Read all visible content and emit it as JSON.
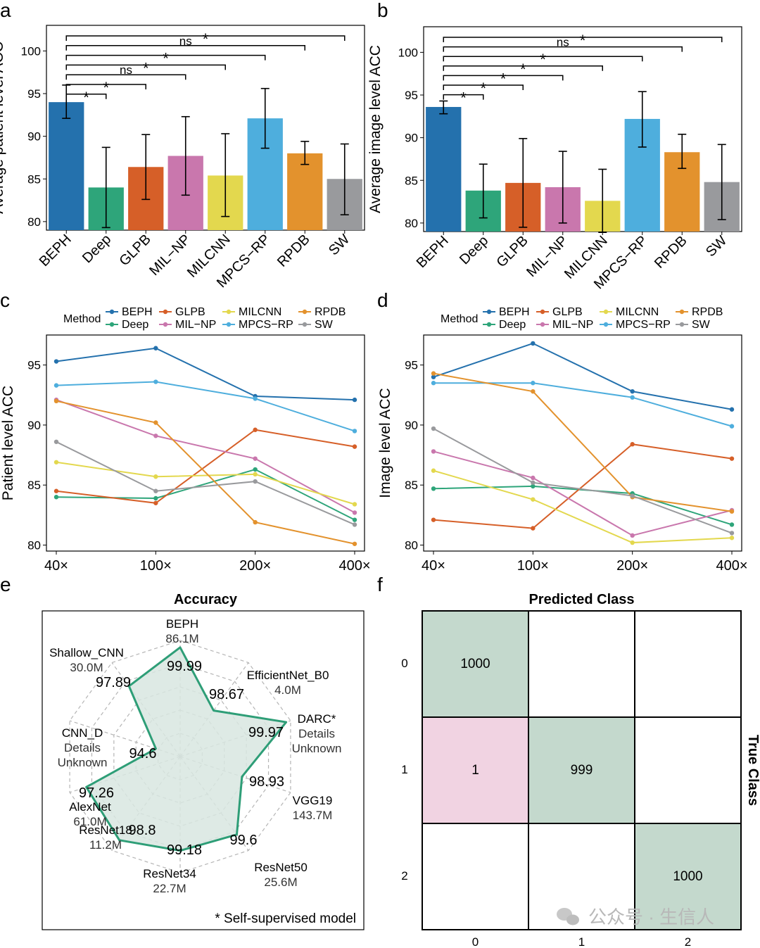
{
  "colors": {
    "BEPH": "#2471ad",
    "Deep": "#2ea57a",
    "GLPB": "#d65f28",
    "MIL-NP": "#c977ad",
    "MILCNN": "#e3d84e",
    "MPCS-RP": "#4eaedd",
    "RPDB": "#e3922d",
    "SW": "#999a9d",
    "radar": "#2e9e77",
    "radar_fill": "#d8e6e0",
    "cm_green": "#c4d9cd",
    "cm_pink": "#f1d3e2"
  },
  "panels": {
    "a": "a",
    "b": "b",
    "c": "c",
    "d": "d",
    "e": "e",
    "f": "f"
  },
  "legend": {
    "title": "Method",
    "names": [
      "BEPH",
      "GLPB",
      "MILCNN",
      "RPDB",
      "Deep",
      "MIL−NP",
      "MPCS−RP",
      "SW"
    ]
  },
  "chart_data": [
    {
      "id": "a",
      "type": "bar",
      "ylabel": "Average patient level ACC",
      "ylim": [
        79,
        103
      ],
      "yticks": [
        80,
        85,
        90,
        95,
        100
      ],
      "categories": [
        "BEPH",
        "Deep",
        "GLPB",
        "MIL−NP",
        "MILCNN",
        "MPCS−RP",
        "RPDB",
        "SW"
      ],
      "values": [
        94.0,
        84.0,
        86.4,
        87.7,
        85.4,
        92.1,
        88.0,
        85.0
      ],
      "error_low": [
        92.1,
        79.3,
        82.6,
        83.1,
        80.6,
        88.6,
        86.7,
        80.8
      ],
      "error_high": [
        96.0,
        88.7,
        90.2,
        92.3,
        90.3,
        95.6,
        89.4,
        89.1
      ],
      "significance": [
        {
          "to": 1,
          "label": "*"
        },
        {
          "to": 2,
          "label": "*"
        },
        {
          "to": 3,
          "label": "ns"
        },
        {
          "to": 4,
          "label": "*"
        },
        {
          "to": 5,
          "label": "*"
        },
        {
          "to": 6,
          "label": "ns"
        },
        {
          "to": 7,
          "label": "*"
        }
      ]
    },
    {
      "id": "b",
      "type": "bar",
      "ylabel": "Average image level ACC",
      "ylim": [
        79,
        103
      ],
      "yticks": [
        80,
        85,
        90,
        95,
        100
      ],
      "categories": [
        "BEPH",
        "Deep",
        "GLPB",
        "MIL−NP",
        "MILCNN",
        "MPCS−RP",
        "RPDB",
        "SW"
      ],
      "values": [
        93.6,
        83.8,
        84.7,
        84.2,
        82.6,
        92.2,
        88.3,
        84.8
      ],
      "error_low": [
        92.8,
        80.6,
        79.5,
        80.0,
        78.9,
        88.9,
        86.4,
        80.4
      ],
      "error_high": [
        94.3,
        86.9,
        89.9,
        88.4,
        86.3,
        95.4,
        90.4,
        89.2
      ],
      "significance": [
        {
          "to": 1,
          "label": "*"
        },
        {
          "to": 2,
          "label": "*"
        },
        {
          "to": 3,
          "label": "*"
        },
        {
          "to": 4,
          "label": "*"
        },
        {
          "to": 5,
          "label": "*"
        },
        {
          "to": 6,
          "label": "ns"
        },
        {
          "to": 7,
          "label": "*"
        }
      ]
    },
    {
      "id": "c",
      "type": "line",
      "ylabel": "Patient level ACC",
      "ylim": [
        79.5,
        97.5
      ],
      "yticks": [
        80,
        85,
        90,
        95
      ],
      "x": [
        "40×",
        "100×",
        "200×",
        "400×"
      ],
      "series": [
        {
          "name": "BEPH",
          "values": [
            95.3,
            96.4,
            92.4,
            92.1
          ]
        },
        {
          "name": "Deep",
          "values": [
            84.0,
            83.9,
            86.3,
            82.1
          ]
        },
        {
          "name": "GLPB",
          "values": [
            84.5,
            83.5,
            89.6,
            88.2
          ]
        },
        {
          "name": "MIL-NP",
          "values": [
            92.1,
            89.1,
            87.2,
            82.7
          ]
        },
        {
          "name": "MILCNN",
          "values": [
            86.9,
            85.7,
            85.9,
            83.4
          ]
        },
        {
          "name": "MPCS-RP",
          "values": [
            93.3,
            93.6,
            92.2,
            89.5
          ]
        },
        {
          "name": "RPDB",
          "values": [
            92.0,
            90.2,
            81.9,
            80.1
          ]
        },
        {
          "name": "SW",
          "values": [
            88.6,
            84.5,
            85.3,
            81.7
          ]
        }
      ]
    },
    {
      "id": "d",
      "type": "line",
      "ylabel": "Image level ACC",
      "ylim": [
        79.5,
        97.5
      ],
      "yticks": [
        80,
        85,
        90,
        95
      ],
      "x": [
        "40×",
        "100×",
        "200×",
        "400×"
      ],
      "series": [
        {
          "name": "BEPH",
          "values": [
            94.0,
            96.8,
            92.8,
            91.3
          ]
        },
        {
          "name": "Deep",
          "values": [
            84.7,
            84.9,
            84.3,
            81.7
          ]
        },
        {
          "name": "GLPB",
          "values": [
            82.1,
            81.4,
            88.4,
            87.2
          ]
        },
        {
          "name": "MIL-NP",
          "values": [
            87.8,
            85.6,
            80.8,
            82.9
          ]
        },
        {
          "name": "MILCNN",
          "values": [
            86.2,
            83.8,
            80.2,
            80.6
          ]
        },
        {
          "name": "MPCS-RP",
          "values": [
            93.5,
            93.5,
            92.3,
            89.9
          ]
        },
        {
          "name": "RPDB",
          "values": [
            94.3,
            92.8,
            84.0,
            82.8
          ]
        },
        {
          "name": "SW",
          "values": [
            89.7,
            85.2,
            84.1,
            81.0
          ]
        }
      ]
    },
    {
      "id": "e",
      "type": "radar",
      "title": "Accuracy",
      "note": "* Self-supervised model",
      "axes": [
        {
          "name": "BEPH",
          "params": "86.1M",
          "value": 99.99,
          "r": 0.94
        },
        {
          "name": "EfficientNet_B0",
          "params": "4.0M",
          "value": 98.67,
          "r": 0.49
        },
        {
          "name": "DARC*",
          "params": "Details Unknown",
          "value": 99.97,
          "r": 0.96
        },
        {
          "name": "VGG19",
          "params": "143.7M",
          "value": 98.93,
          "r": 0.56
        },
        {
          "name": "ResNet50",
          "params": "25.6M",
          "value": 99.6,
          "r": 0.83
        },
        {
          "name": "ResNet34",
          "params": "22.7M",
          "value": 99.18,
          "r": 0.81
        },
        {
          "name": "ResNet18",
          "params": "11.2M",
          "value": 98.8,
          "r": 0.89
        },
        {
          "name": "AlexNet",
          "params": "61.0M",
          "value": 97.26,
          "r": 0.85
        },
        {
          "name": "CNN_D",
          "params": "Details Unknown",
          "value": 94.6,
          "r": 0.22
        },
        {
          "name": "Shallow_CNN",
          "params": "30.0M",
          "value": 97.89,
          "r": 0.75
        }
      ]
    },
    {
      "id": "f",
      "type": "heatmap",
      "title": "Predicted Class",
      "ylabel": "True Class",
      "labels": [
        "0",
        "1",
        "2"
      ],
      "matrix": [
        [
          1000,
          0,
          0
        ],
        [
          1,
          999,
          0
        ],
        [
          0,
          0,
          1000
        ]
      ]
    }
  ],
  "watermark": "公众号 · 生信人"
}
